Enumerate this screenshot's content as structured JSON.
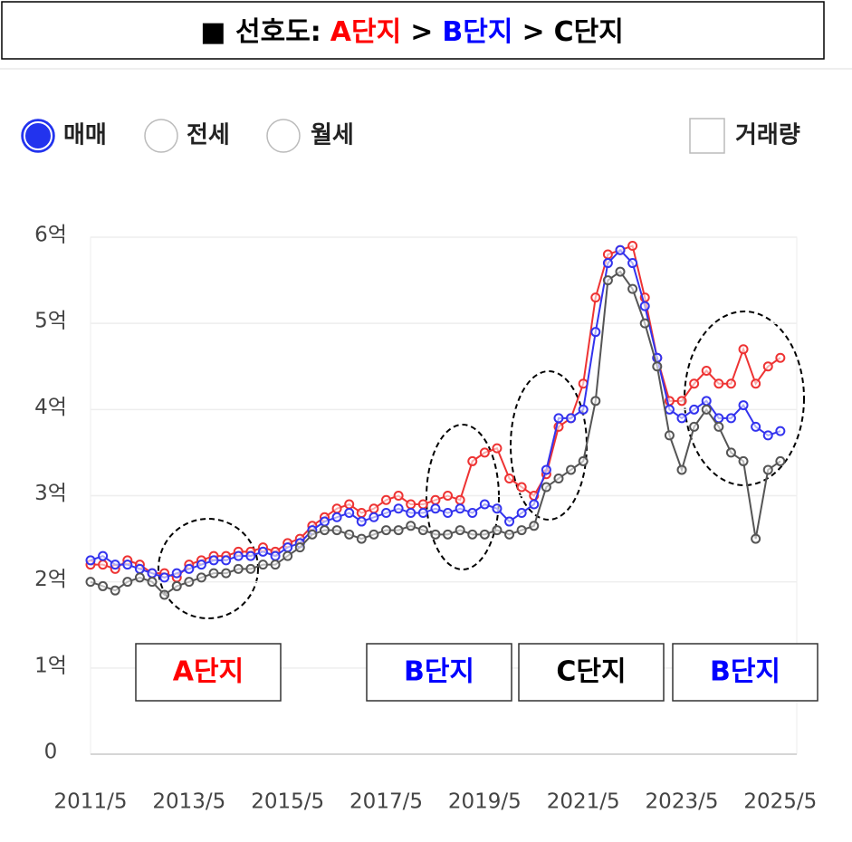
{
  "chart_data": {
    "type": "line",
    "title_parts": [
      {
        "text": "■ 선호도:",
        "color": "#000000"
      },
      {
        "text": "A단지",
        "color": "#ff0000"
      },
      {
        "text": ">",
        "color": "#000000"
      },
      {
        "text": "B단지",
        "color": "#0000ff"
      },
      {
        "text": ">",
        "color": "#000000"
      },
      {
        "text": "C단지",
        "color": "#000000"
      }
    ],
    "controls": {
      "radio": [
        "매매",
        "전세",
        "월세"
      ],
      "selected": 0,
      "checkbox": "거래량"
    },
    "x": [
      "2011/5",
      "2011/8",
      "2011/11",
      "2012/2",
      "2012/5",
      "2012/8",
      "2012/11",
      "2013/2",
      "2013/5",
      "2013/8",
      "2013/11",
      "2014/2",
      "2014/5",
      "2014/8",
      "2014/11",
      "2015/2",
      "2015/5",
      "2015/8",
      "2015/11",
      "2016/2",
      "2016/5",
      "2016/8",
      "2016/11",
      "2017/2",
      "2017/5",
      "2017/8",
      "2017/11",
      "2018/2",
      "2018/5",
      "2018/8",
      "2018/11",
      "2019/2",
      "2019/5",
      "2019/8",
      "2019/11",
      "2020/2",
      "2020/5",
      "2020/8",
      "2020/11",
      "2021/2",
      "2021/5",
      "2021/8",
      "2021/11",
      "2022/2",
      "2022/5",
      "2022/8",
      "2022/11",
      "2023/2",
      "2023/5",
      "2023/8",
      "2023/11",
      "2024/2",
      "2024/5",
      "2024/8",
      "2024/11",
      "2025/2",
      "2025/5"
    ],
    "series": [
      {
        "color": "#ee3333",
        "values": [
          2.2,
          2.2,
          2.15,
          2.25,
          2.2,
          2.1,
          2.1,
          2.05,
          2.2,
          2.25,
          2.3,
          2.3,
          2.35,
          2.35,
          2.4,
          2.35,
          2.45,
          2.5,
          2.65,
          2.75,
          2.85,
          2.9,
          2.8,
          2.85,
          2.95,
          3.0,
          2.9,
          2.9,
          2.95,
          3.0,
          2.95,
          3.4,
          3.5,
          3.55,
          3.2,
          3.1,
          3.0,
          3.25,
          3.8,
          3.9,
          4.3,
          5.3,
          5.8,
          5.85,
          5.9,
          5.3,
          4.6,
          4.1,
          4.1,
          4.3,
          4.45,
          4.3,
          4.3,
          4.7,
          4.3,
          4.5,
          4.6
        ]
      },
      {
        "color": "#3333ee",
        "values": [
          2.25,
          2.3,
          2.2,
          2.2,
          2.15,
          2.1,
          2.05,
          2.1,
          2.15,
          2.2,
          2.25,
          2.25,
          2.3,
          2.3,
          2.35,
          2.3,
          2.4,
          2.45,
          2.6,
          2.7,
          2.75,
          2.8,
          2.7,
          2.75,
          2.8,
          2.85,
          2.8,
          2.8,
          2.85,
          2.8,
          2.85,
          2.8,
          2.9,
          2.85,
          2.7,
          2.8,
          2.9,
          3.3,
          3.9,
          3.9,
          4.0,
          4.9,
          5.7,
          5.85,
          5.7,
          5.2,
          4.6,
          4.0,
          3.9,
          4.0,
          4.1,
          3.9,
          3.9,
          4.05,
          3.8,
          3.7,
          3.75
        ]
      },
      {
        "color": "#555555",
        "values": [
          2.0,
          1.95,
          1.9,
          2.0,
          2.05,
          2.0,
          1.85,
          1.95,
          2.0,
          2.05,
          2.1,
          2.1,
          2.15,
          2.15,
          2.2,
          2.2,
          2.3,
          2.4,
          2.55,
          2.6,
          2.6,
          2.55,
          2.5,
          2.55,
          2.6,
          2.6,
          2.65,
          2.6,
          2.55,
          2.55,
          2.6,
          2.55,
          2.55,
          2.6,
          2.55,
          2.6,
          2.65,
          3.1,
          3.2,
          3.3,
          3.4,
          4.1,
          5.5,
          5.6,
          5.4,
          5.0,
          4.5,
          3.7,
          3.3,
          3.8,
          4.0,
          3.8,
          3.5,
          3.4,
          2.5,
          3.3,
          3.4
        ]
      }
    ],
    "xlim": [
      "2011/5",
      "2025/9"
    ],
    "xticks": [
      "2011/5",
      "2013/5",
      "2015/5",
      "2017/5",
      "2019/5",
      "2021/5",
      "2023/5",
      "2025/5"
    ],
    "ylim": [
      0,
      6
    ],
    "yticks": [
      0,
      {
        "value": 1,
        "label": "1억"
      },
      {
        "value": 2,
        "label": "2억"
      },
      {
        "value": 3,
        "label": "3억"
      },
      {
        "value": 4,
        "label": "4억"
      },
      {
        "value": 5,
        "label": "5억"
      },
      {
        "value": 6,
        "label": "6억"
      }
    ],
    "grid": true,
    "annotations": [
      {
        "text": "A단지",
        "color": "#ff0000"
      },
      {
        "text": "B단지",
        "color": "#0000ff"
      },
      {
        "text": "C단지",
        "color": "#000000"
      },
      {
        "text": "B단지",
        "color": "#0000ff"
      }
    ]
  }
}
